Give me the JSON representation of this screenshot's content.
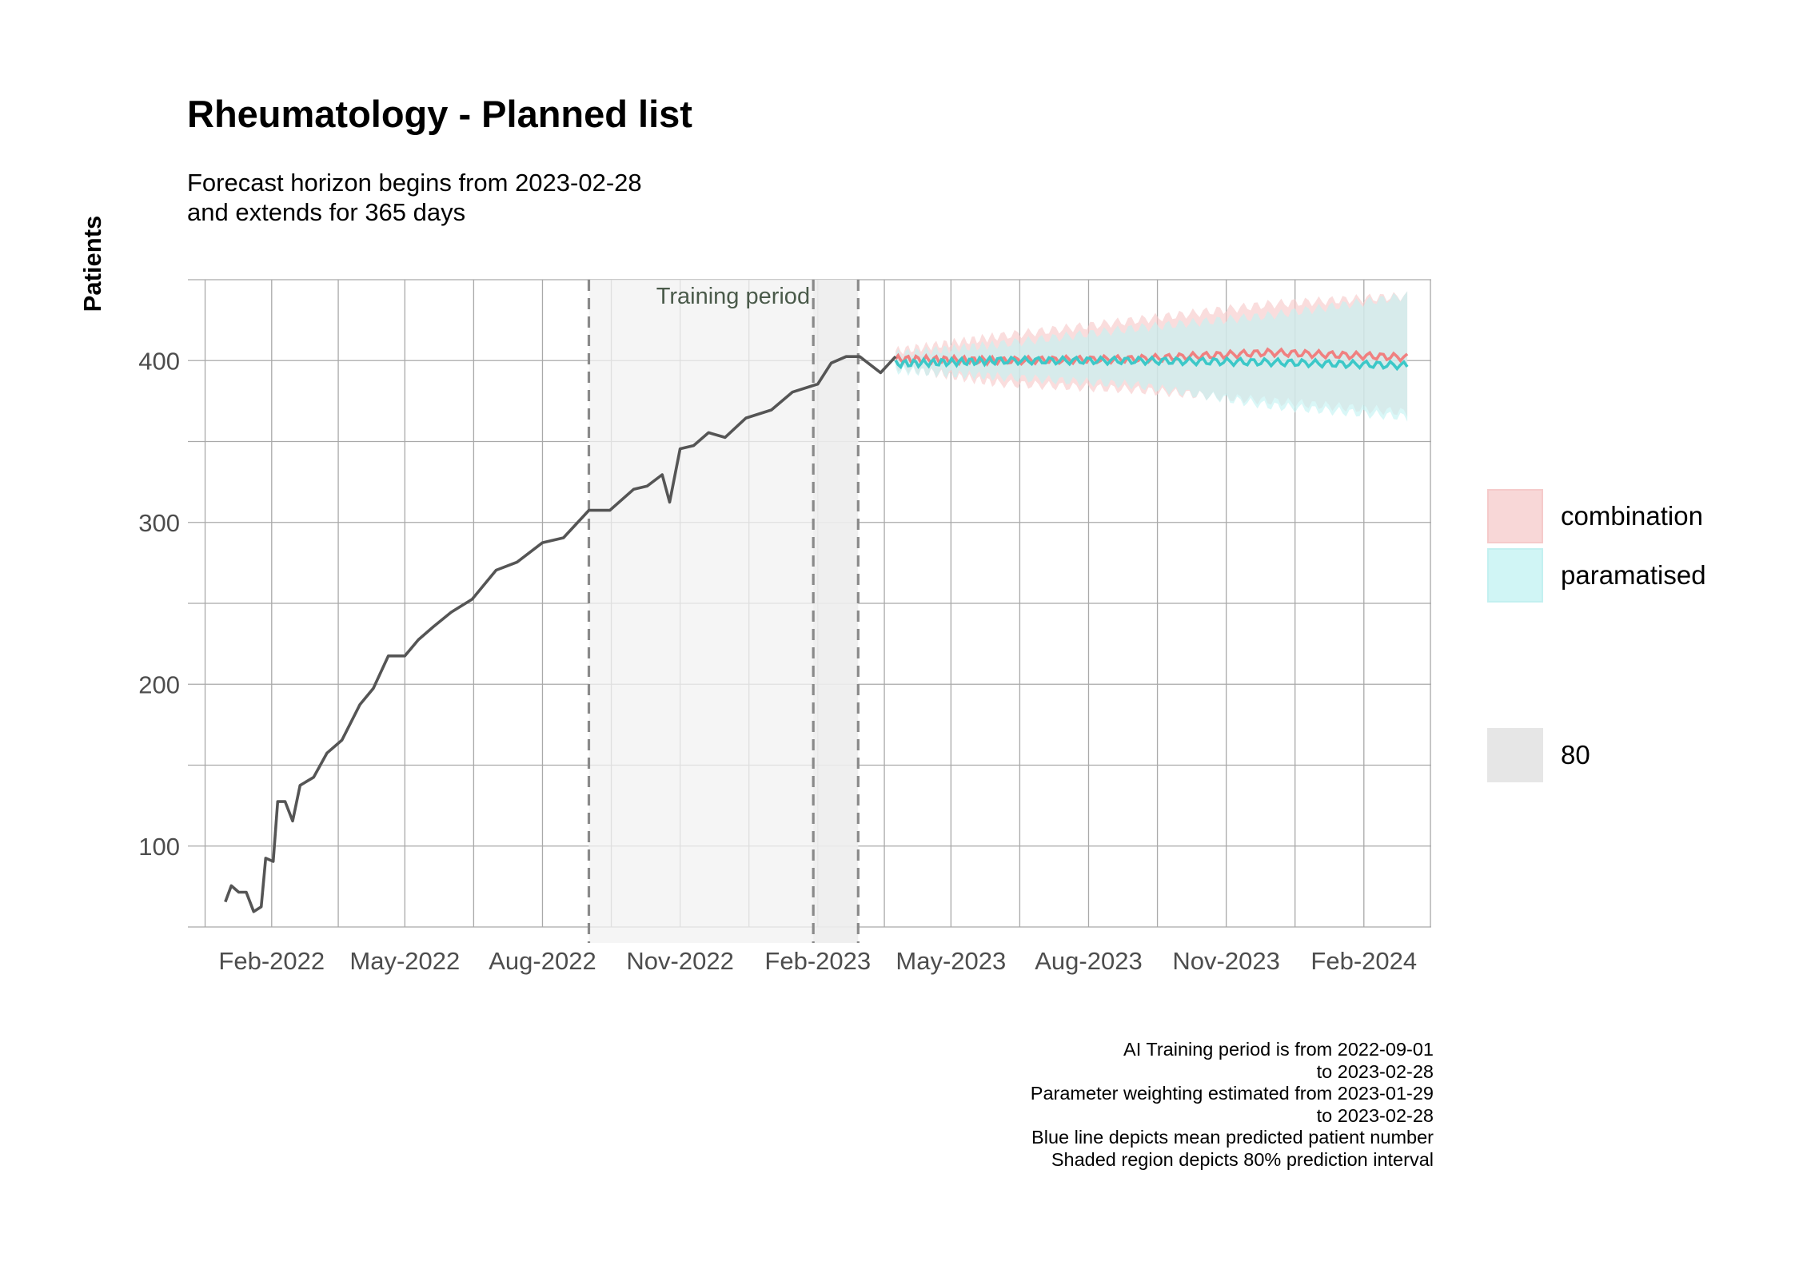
{
  "chart_data": {
    "type": "line",
    "title": "Rheumatology - Planned list",
    "subtitle_lines": [
      "Forecast horizon begins from 2023-02-28",
      "and extends for 365 days"
    ],
    "ylabel": "Patients",
    "xlabel": "",
    "x_ticks": [
      "Feb-2022",
      "May-2022",
      "Aug-2022",
      "Nov-2022",
      "Feb-2023",
      "May-2023",
      "Aug-2023",
      "Nov-2023",
      "Feb-2024"
    ],
    "x_tick_dates": [
      "2022-02-01",
      "2022-05-01",
      "2022-08-01",
      "2022-11-01",
      "2023-02-01",
      "2023-05-01",
      "2023-08-01",
      "2023-11-01",
      "2024-02-01"
    ],
    "y_ticks": [
      100,
      200,
      300,
      400
    ],
    "ylim": [
      50,
      450
    ],
    "xlim": [
      "2021-12-07",
      "2024-03-17"
    ],
    "grid": true,
    "training_period": {
      "label": "Training period",
      "start": "2022-09-01",
      "end": "2023-02-28"
    },
    "weighting_period": {
      "start": "2023-01-29",
      "end": "2023-02-28"
    },
    "historical": {
      "name": "observed",
      "color": "#555555",
      "points": [
        [
          "2022-01-01",
          68
        ],
        [
          "2022-01-05",
          73
        ],
        [
          "2022-01-10",
          74
        ],
        [
          "2022-01-15",
          69
        ],
        [
          "2022-01-20",
          62
        ],
        [
          "2022-01-25",
          60
        ],
        [
          "2022-01-28",
          95
        ],
        [
          "2022-02-02",
          88
        ],
        [
          "2022-02-05",
          130
        ],
        [
          "2022-02-10",
          125
        ],
        [
          "2022-02-15",
          118
        ],
        [
          "2022-02-20",
          135
        ],
        [
          "2022-03-01",
          145
        ],
        [
          "2022-03-10",
          155
        ],
        [
          "2022-03-20",
          168
        ],
        [
          "2022-04-01",
          185
        ],
        [
          "2022-04-10",
          200
        ],
        [
          "2022-04-20",
          215
        ],
        [
          "2022-05-01",
          220
        ],
        [
          "2022-05-10",
          225
        ],
        [
          "2022-05-20",
          238
        ],
        [
          "2022-06-01",
          242
        ],
        [
          "2022-06-15",
          255
        ],
        [
          "2022-07-01",
          268
        ],
        [
          "2022-07-15",
          278
        ],
        [
          "2022-08-01",
          285
        ],
        [
          "2022-08-15",
          293
        ],
        [
          "2022-09-01",
          305
        ],
        [
          "2022-09-15",
          310
        ],
        [
          "2022-10-01",
          318
        ],
        [
          "2022-10-10",
          325
        ],
        [
          "2022-10-20",
          327
        ],
        [
          "2022-10-25",
          315
        ],
        [
          "2022-11-01",
          343
        ],
        [
          "2022-11-10",
          350
        ],
        [
          "2022-11-20",
          353
        ],
        [
          "2022-12-01",
          355
        ],
        [
          "2022-12-15",
          362
        ],
        [
          "2023-01-01",
          372
        ],
        [
          "2023-01-15",
          378
        ],
        [
          "2023-02-01",
          388
        ],
        [
          "2023-02-10",
          396
        ],
        [
          "2023-02-20",
          405
        ],
        [
          "2023-03-01",
          400
        ],
        [
          "2023-03-15",
          395
        ],
        [
          "2023-03-25",
          400
        ]
      ]
    },
    "series": [
      {
        "name": "combination",
        "color": "#f08080",
        "fill": "#f8cbcb",
        "points": [
          [
            "2023-03-25",
            401
          ],
          [
            "2023-06-01",
            400
          ],
          [
            "2023-09-01",
            401
          ],
          [
            "2023-12-01",
            405
          ],
          [
            "2024-03-01",
            402
          ]
        ],
        "lower": [
          [
            "2023-03-25",
            396
          ],
          [
            "2023-06-01",
            386
          ],
          [
            "2023-09-01",
            382
          ],
          [
            "2023-12-01",
            375
          ],
          [
            "2024-03-01",
            368
          ]
        ],
        "upper": [
          [
            "2023-03-25",
            406
          ],
          [
            "2023-06-01",
            415
          ],
          [
            "2023-09-01",
            425
          ],
          [
            "2023-12-01",
            435
          ],
          [
            "2024-03-01",
            440
          ]
        ]
      },
      {
        "name": "paramatised",
        "color": "#3cc8c8",
        "fill": "#c4f2f2",
        "points": [
          [
            "2023-03-25",
            398
          ],
          [
            "2023-06-01",
            400
          ],
          [
            "2023-09-01",
            400
          ],
          [
            "2023-12-01",
            399
          ],
          [
            "2024-03-01",
            397
          ]
        ],
        "lower": [
          [
            "2023-03-25",
            394
          ],
          [
            "2023-06-01",
            390
          ],
          [
            "2023-09-01",
            385
          ],
          [
            "2023-12-01",
            372
          ],
          [
            "2024-03-01",
            365
          ]
        ],
        "upper": [
          [
            "2023-03-25",
            404
          ],
          [
            "2023-06-01",
            410
          ],
          [
            "2023-09-01",
            420
          ],
          [
            "2023-12-01",
            428
          ],
          [
            "2024-03-01",
            440
          ]
        ]
      }
    ],
    "legend_placement": "right",
    "legend": [
      {
        "label": "combination",
        "color": "#f8d7d7"
      },
      {
        "label": "paramatised",
        "color": "#d0f5f5"
      },
      {
        "label": "80",
        "color": "#e6e6e6"
      }
    ],
    "caption_lines": [
      "AI Training period is from 2022-09-01",
      "to 2023-02-28",
      "Parameter weighting estimated from 2023-01-29",
      "to 2023-02-28",
      "Blue line depicts mean predicted patient number",
      "Shaded region depicts 80% prediction interval"
    ]
  }
}
